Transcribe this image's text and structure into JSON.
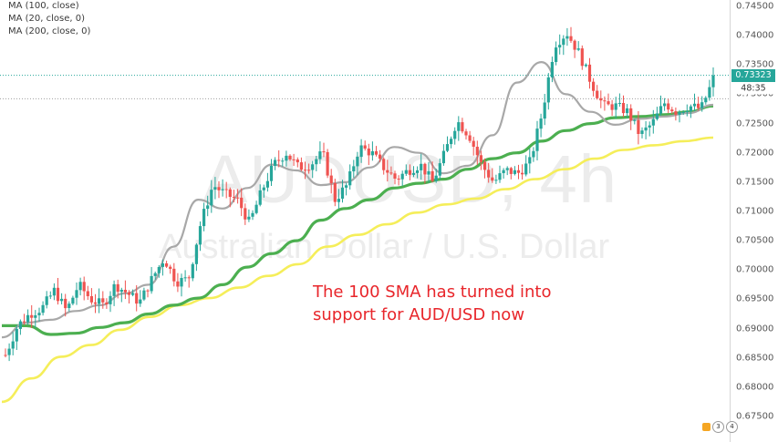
{
  "legend": {
    "lines": [
      "MA (100, close)",
      "MA (20, close, 0)",
      "MA (200, close, 0)"
    ]
  },
  "watermark": {
    "symbol": "AUDUSD, 4h",
    "name": "Australian Dollar / U.S. Dollar"
  },
  "annotation": {
    "line1": "The 100 SMA has turned into",
    "line2": "support for AUD/USD now"
  },
  "price_axis": {
    "current_price": "0.73323",
    "countdown": "48:35"
  },
  "indicator_badges": [
    "3",
    "4"
  ],
  "colors": {
    "up_candle": "#26a69a",
    "down_candle": "#ef5350",
    "ma100": "#4caf50",
    "ma20": "#a8a8a8",
    "ma200": "#f5ee5a",
    "annotation": "#e8262b",
    "price_badge": "#26a69a"
  },
  "chart_data": {
    "type": "candlestick",
    "title": "AUDUSD, 4h",
    "ylim": [
      0.67,
      0.745
    ],
    "y_ticks": [
      "0.74500",
      "0.74000",
      "0.73500",
      "0.73000",
      "0.72500",
      "0.72000",
      "0.71500",
      "0.71000",
      "0.70500",
      "0.70000",
      "0.69500",
      "0.69000",
      "0.68500",
      "0.68000",
      "0.67500"
    ],
    "grid": false,
    "current_price": 0.73323,
    "price_path": [
      0.6855,
      0.6905,
      0.6925,
      0.6935,
      0.6965,
      0.693,
      0.6975,
      0.695,
      0.694,
      0.6975,
      0.696,
      0.6945,
      0.6985,
      0.702,
      0.698,
      0.6985,
      0.708,
      0.7145,
      0.713,
      0.712,
      0.708,
      0.7135,
      0.718,
      0.72,
      0.7175,
      0.718,
      0.72,
      0.712,
      0.7145,
      0.721,
      0.72,
      0.7175,
      0.7155,
      0.717,
      0.718,
      0.715,
      0.72,
      0.7255,
      0.723,
      0.718,
      0.715,
      0.717,
      0.7165,
      0.7185,
      0.727,
      0.7385,
      0.7405,
      0.737,
      0.732,
      0.728,
      0.728,
      0.727,
      0.723,
      0.725,
      0.7285,
      0.727,
      0.728,
      0.7275,
      0.7325
    ],
    "series": [
      {
        "name": "MA (100, close)",
        "color": "#4caf50",
        "values": [
          0.6905,
          0.6905,
          0.689,
          0.6892,
          0.6902,
          0.691,
          0.6925,
          0.694,
          0.6952,
          0.6975,
          0.7005,
          0.7028,
          0.705,
          0.7085,
          0.7105,
          0.712,
          0.714,
          0.7148,
          0.7155,
          0.7172,
          0.719,
          0.72,
          0.722,
          0.7238,
          0.725,
          0.726,
          0.7262,
          0.7265,
          0.727,
          0.728
        ]
      },
      {
        "name": "MA (20, close, 0)",
        "color": "#a8a8a8",
        "values": [
          0.6885,
          0.691,
          0.6915,
          0.693,
          0.694,
          0.696,
          0.6975,
          0.704,
          0.712,
          0.7105,
          0.714,
          0.718,
          0.717,
          0.7145,
          0.715,
          0.7175,
          0.721,
          0.72,
          0.7165,
          0.7178,
          0.723,
          0.732,
          0.7355,
          0.73,
          0.727,
          0.7248,
          0.7258,
          0.7262,
          0.7268,
          0.7282
        ]
      },
      {
        "name": "MA (200, close, 0)",
        "color": "#f5ee5a",
        "values": [
          0.6775,
          0.6815,
          0.6852,
          0.6872,
          0.6898,
          0.692,
          0.694,
          0.6952,
          0.697,
          0.699,
          0.701,
          0.704,
          0.706,
          0.7078,
          0.7098,
          0.7112,
          0.7122,
          0.7138,
          0.7155,
          0.7172,
          0.719,
          0.7205,
          0.7213,
          0.722,
          0.7226
        ]
      }
    ]
  }
}
